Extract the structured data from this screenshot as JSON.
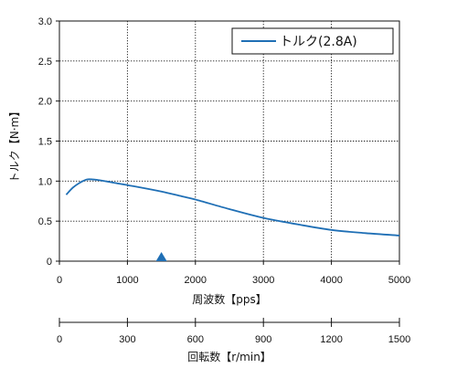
{
  "chart_data": {
    "type": "line",
    "ylabel": "トルク【N·m】",
    "xlabel": "周波数【pps】",
    "xlabel2": "回転数【r/min】",
    "xlim": [
      0,
      5000
    ],
    "ylim": [
      0,
      3.0
    ],
    "xticks": [
      "0",
      "1000",
      "2000",
      "3000",
      "4000",
      "5000"
    ],
    "yticks": [
      "0",
      "0.5",
      "1.0",
      "1.5",
      "2.0",
      "2.5",
      "3.0"
    ],
    "x2lim": [
      0,
      1500
    ],
    "x2ticks": [
      "0",
      "300",
      "600",
      "900",
      "1200",
      "1500"
    ],
    "grid": true,
    "legend_position": "top-right",
    "series": [
      {
        "name": "トルク(2.8A)",
        "color": "#1f6fb5",
        "x": [
          100,
          200,
          300,
          400,
          500,
          600,
          800,
          1000,
          1200,
          1500,
          1800,
          2000,
          2500,
          3000,
          3500,
          4000,
          4500,
          5000
        ],
        "y": [
          0.83,
          0.92,
          0.98,
          1.02,
          1.02,
          1.01,
          0.98,
          0.95,
          0.92,
          0.87,
          0.81,
          0.77,
          0.65,
          0.54,
          0.46,
          0.39,
          0.35,
          0.32
        ]
      }
    ],
    "marker": {
      "x": 1500,
      "shape": "triangle-up",
      "color": "#1f6fb5"
    }
  }
}
